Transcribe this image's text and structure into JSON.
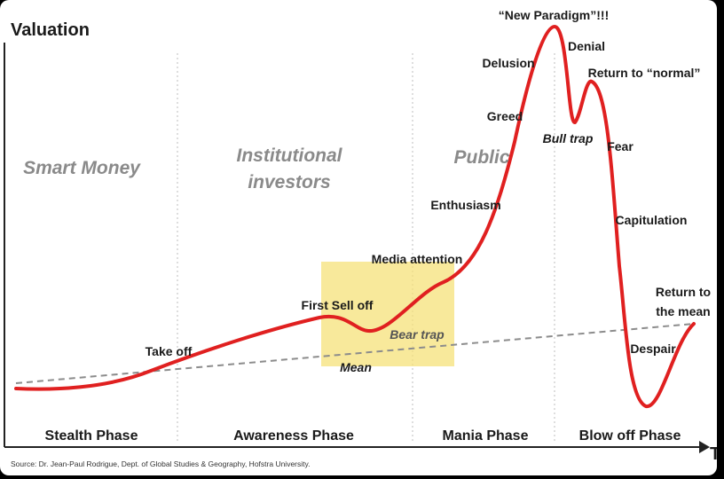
{
  "axis": {
    "y_label": "Valuation",
    "x_label": "Ti"
  },
  "actor_labels": {
    "smart_money": "Smart Money",
    "institutional_line1": "Institutional",
    "institutional_line2": "investors",
    "public": "Public"
  },
  "phases": {
    "stealth": "Stealth Phase",
    "awareness": "Awareness Phase",
    "mania": "Mania Phase",
    "blowoff": "Blow off Phase"
  },
  "annotations": {
    "take_off": "Take off",
    "first_sell_off": "First Sell off",
    "bear_trap": "Bear trap",
    "mean": "Mean",
    "media_attention": "Media attention",
    "enthusiasm": "Enthusiasm",
    "greed": "Greed",
    "delusion": "Delusion",
    "new_paradigm": "“New Paradigm”!!!",
    "denial": "Denial",
    "return_to_normal": "Return to “normal”",
    "bull_trap": "Bull trap",
    "fear": "Fear",
    "capitulation": "Capitulation",
    "despair": "Despair",
    "return_to_mean_line1": "Return to",
    "return_to_mean_line2": "the mean"
  },
  "source": "Source: Dr. Jean-Paul Rodrigue, Dept. of Global Studies & Geography, Hofstra University.",
  "colors": {
    "curve": "#e02020",
    "mean_line": "#8c8c8c",
    "highlight": "#f5e27a",
    "grey_text": "#8a8a8a"
  }
}
